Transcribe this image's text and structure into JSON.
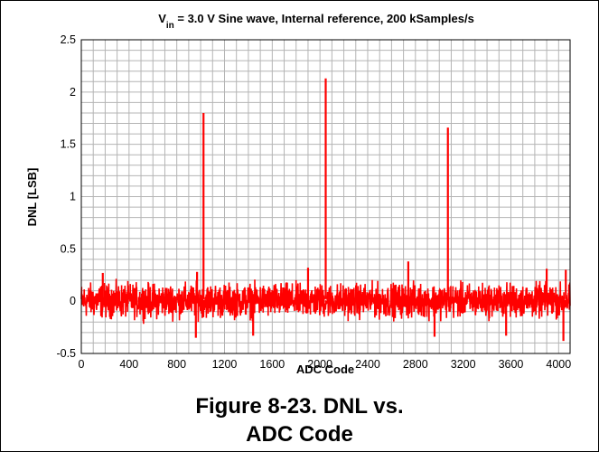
{
  "chart_data": {
    "type": "line",
    "title": {
      "prefix": "V",
      "subscript": "in",
      "rest": " = 3.0 V Sine wave, Internal reference, 200 kSamples/s"
    },
    "xlabel": "ADC Code",
    "ylabel": "DNL [LSB]",
    "xlim": [
      0,
      4096
    ],
    "ylim": [
      -0.5,
      2.5
    ],
    "x_ticks": [
      0,
      400,
      800,
      1200,
      1600,
      2000,
      2400,
      2800,
      3200,
      3600,
      4000
    ],
    "y_ticks": [
      -0.5,
      0,
      0.5,
      1,
      1.5,
      2,
      2.5
    ],
    "x_tick_labels": [
      "0",
      "400",
      "800",
      "1200",
      "1600",
      "2000",
      "2400",
      "2800",
      "3200",
      "3600",
      "4000"
    ],
    "y_tick_labels": [
      "-0.5",
      "0",
      "0.5",
      "1",
      "1.5",
      "2",
      "2.5"
    ],
    "grid": true,
    "legend": "none",
    "series": [
      {
        "color": "#ff0000",
        "description": "noise band roughly between -0.25 and 0.3 LSB across all codes",
        "noise_band": {
          "low": -0.25,
          "high": 0.3
        },
        "spikes": [
          {
            "x": 1024,
            "y": 1.8
          },
          {
            "x": 2048,
            "y": 2.13
          },
          {
            "x": 3072,
            "y": 1.66
          },
          {
            "x": 180,
            "y": 0.27
          },
          {
            "x": 970,
            "y": 0.28
          },
          {
            "x": 1900,
            "y": 0.32
          },
          {
            "x": 2740,
            "y": 0.38
          },
          {
            "x": 3900,
            "y": 0.31
          },
          {
            "x": 4060,
            "y": 0.3
          },
          {
            "x": 960,
            "y": -0.35
          },
          {
            "x": 1440,
            "y": -0.33
          },
          {
            "x": 2960,
            "y": -0.34
          },
          {
            "x": 3560,
            "y": -0.33
          },
          {
            "x": 4040,
            "y": -0.38
          }
        ]
      }
    ]
  },
  "caption": {
    "line1": "Figure 8-23. DNL vs.",
    "line2": "ADC Code"
  },
  "colors": {
    "series": "#ff0000",
    "grid": "#b4b4b4",
    "axis": "#000000"
  }
}
